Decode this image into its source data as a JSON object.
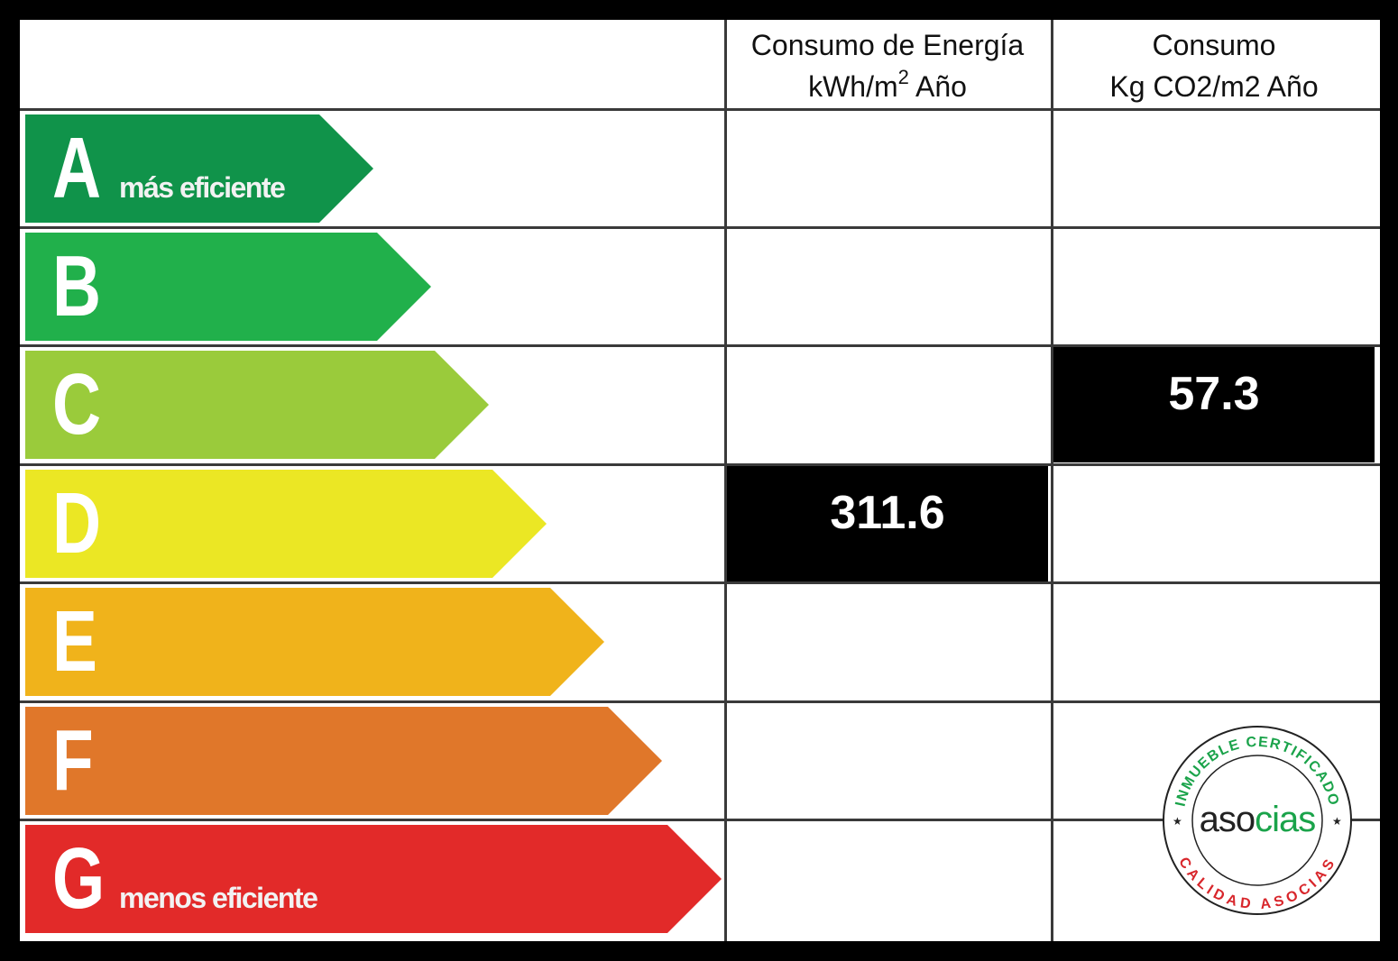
{
  "columns": {
    "energy": {
      "line1": "Consumo de Energía",
      "line2_pre": "kWh/m",
      "line2_sup": "2",
      "line2_post": " Año"
    },
    "co2": {
      "line1": "Consumo",
      "line2": "Kg CO2/m2 Año"
    }
  },
  "ratings": [
    {
      "letter": "A",
      "note": "más eficiente",
      "color": "#10934a"
    },
    {
      "letter": "B",
      "note": "",
      "color": "#21b04b"
    },
    {
      "letter": "C",
      "note": "",
      "color": "#9acb3b"
    },
    {
      "letter": "D",
      "note": "",
      "color": "#ebe724"
    },
    {
      "letter": "E",
      "note": "",
      "color": "#f0b31b"
    },
    {
      "letter": "F",
      "note": "",
      "color": "#e0772a"
    },
    {
      "letter": "G",
      "note": "menos eficiente",
      "color": "#e22a29"
    }
  ],
  "values": {
    "energy": {
      "rating": "D",
      "value": "311.6"
    },
    "co2": {
      "rating": "C",
      "value": "57.3"
    }
  },
  "seal": {
    "top_text": "INMUEBLE CERTIFICADO",
    "bottom_text": "CALIDAD ASOCIAS",
    "brand_dark": "aso",
    "brand_green": "cias",
    "colors": {
      "green": "#1aa34a",
      "red": "#d8262b"
    }
  }
}
